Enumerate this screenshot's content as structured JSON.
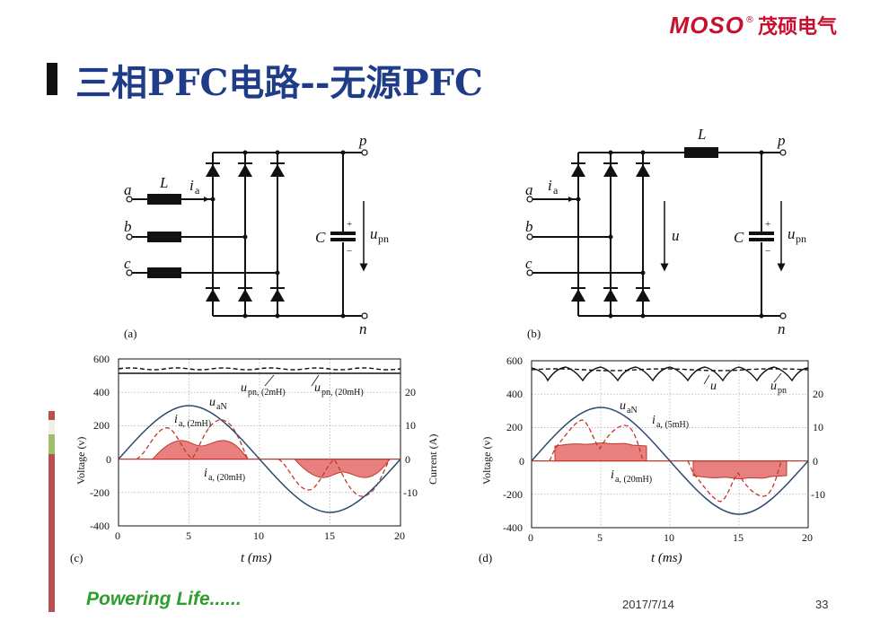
{
  "header": {
    "logo_brand": "MOSO",
    "logo_reg": "®",
    "logo_cn": "茂硕电气",
    "title": "三相PFC电路--无源PFC"
  },
  "footer": {
    "slogan": "Powering Life......",
    "date": "2017/7/14",
    "page": "33"
  },
  "circuit_a": {
    "caption": "(a)",
    "node_a": "a",
    "node_b": "b",
    "node_c": "c",
    "inductor": "L",
    "current": "i",
    "current_sub": "a",
    "capacitor": "C",
    "plus": "+",
    "minus": "−",
    "voltage": "u",
    "voltage_sub": "pn",
    "node_p": "p",
    "node_n": "n"
  },
  "circuit_b": {
    "caption": "(b)",
    "node_a": "a",
    "node_b": "b",
    "node_c": "c",
    "inductor": "L",
    "current": "i",
    "current_sub": "a",
    "capacitor": "C",
    "plus": "+",
    "minus": "−",
    "voltage_u": "u",
    "voltage": "u",
    "voltage_sub": "pn",
    "node_p": "p",
    "node_n": "n"
  },
  "plot_c": {
    "caption": "(c)",
    "ylabel_left": "Voltage (v)",
    "ylabel_right": "Current (A)",
    "xlabel": "t (ms)",
    "x_ticks": [
      "0",
      "5",
      "10",
      "15",
      "20"
    ],
    "y_left_ticks": [
      "600",
      "400",
      "200",
      "0",
      "-200",
      "-400"
    ],
    "y_right_ticks": [
      "20",
      "10",
      "0",
      "-10"
    ],
    "label_upn_2mH": "u",
    "label_upn_2mH_sub": "pn, (2mH)",
    "label_upn_20mH": "u",
    "label_upn_20mH_sub": "pn, (20mH)",
    "label_uaN": "u",
    "label_uaN_sub": "aN",
    "label_ia_2mH": "i",
    "label_ia_2mH_sub": "a, (2mH)",
    "label_ia_20mH": "i",
    "label_ia_20mH_sub": "a, (20mH)"
  },
  "plot_d": {
    "caption": "(d)",
    "ylabel_left": "Voltage (v)",
    "xlabel": "t (ms)",
    "x_ticks": [
      "0",
      "5",
      "10",
      "15",
      "20"
    ],
    "y_left_ticks": [
      "600",
      "400",
      "200",
      "0",
      "-200",
      "-400"
    ],
    "y_right_ticks": [
      "20",
      "10",
      "0",
      "-10"
    ],
    "label_u": "u",
    "label_upn": "u",
    "label_upn_sub": "pn",
    "label_uaN": "u",
    "label_uaN_sub": "aN",
    "label_ia_5mH": "i",
    "label_ia_5mH_sub": "a, (5mH)",
    "label_ia_20mH": "i",
    "label_ia_20mH_sub": "a, (20mH)"
  },
  "colors": {
    "title": "#1f3c88",
    "logo": "#c8102e",
    "slogan": "#2e9e2e",
    "sine": "#2d4a6e",
    "current": "#c0392b",
    "current_fill": "#e88080"
  }
}
